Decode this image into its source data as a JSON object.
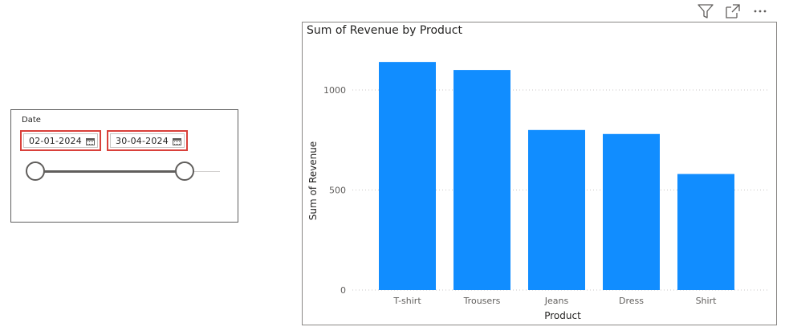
{
  "slicer": {
    "title": "Date",
    "start_date": "02-01-2024",
    "end_date": "30-04-2024",
    "highlight_color": "#d9403a"
  },
  "visual_header": {
    "icons": [
      "filter-icon",
      "focus-mode-icon",
      "more-options-icon"
    ]
  },
  "chart_data": {
    "type": "bar",
    "title": "Sum of Revenue by Product",
    "xlabel": "Product",
    "ylabel": "Sum of Revenue",
    "categories": [
      "T-shirt",
      "Trousers",
      "Jeans",
      "Dress",
      "Shirt"
    ],
    "values": [
      1140,
      1100,
      800,
      780,
      580
    ],
    "ylim": [
      0,
      1000
    ],
    "yticks": [
      0,
      500,
      1000
    ],
    "grid": true,
    "bar_color": "#118dff"
  }
}
